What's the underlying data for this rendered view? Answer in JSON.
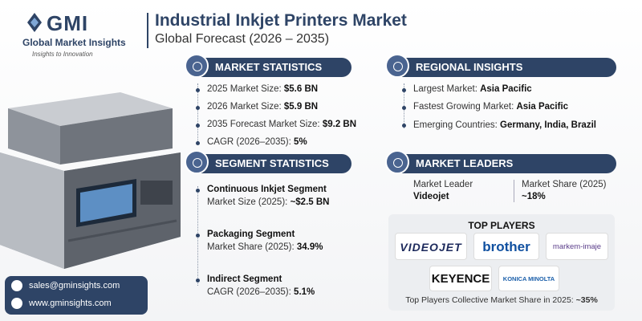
{
  "header": {
    "logo": {
      "brand": "GMI",
      "name": "Global Market Insights",
      "tagline": "Insights to Innovation"
    },
    "title": "Industrial Inkjet Printers Market",
    "subtitle": "Global Forecast (2026 – 2035)"
  },
  "market_statistics": {
    "heading": "MARKET STATISTICS",
    "items": [
      {
        "label": "2025 Market Size:",
        "value": "$5.6 BN"
      },
      {
        "label": "2026 Market Size:",
        "value": "$5.9 BN"
      },
      {
        "label": "2035 Forecast Market Size:",
        "value": "$9.2 BN"
      },
      {
        "label": "CAGR (2026–2035):",
        "value": "5%"
      }
    ]
  },
  "regional_insights": {
    "heading": "REGIONAL INSIGHTS",
    "items": [
      {
        "label": "Largest Market:",
        "value": "Asia Pacific"
      },
      {
        "label": "Fastest Growing Market:",
        "value": "Asia Pacific"
      },
      {
        "label": "Emerging Countries:",
        "value": "Germany, India, Brazil"
      }
    ]
  },
  "segment_statistics": {
    "heading": "SEGMENT STATISTICS",
    "items": [
      {
        "title": "Continuous Inkjet Segment",
        "label": "Market Size (2025):",
        "value": "~$2.5 BN"
      },
      {
        "title": "Packaging Segment",
        "label": "Market Share (2025):",
        "value": "34.9%"
      },
      {
        "title": "Indirect Segment",
        "label": "CAGR (2026–2035):",
        "value": "5.1%"
      }
    ]
  },
  "market_leaders": {
    "heading": "MARKET LEADERS",
    "leader_label": "Market Leader",
    "leader": "Videojet",
    "share_label": "Market Share (2025)",
    "share": "~18%"
  },
  "top_players": {
    "heading": "TOP PLAYERS",
    "logos": [
      "VIDEOJET",
      "brother",
      "markem-imaje",
      "KEYENCE",
      "KONICA MINOLTA"
    ],
    "footer_label": "Top Players Collective Market Share in 2025:",
    "footer_value": "~35%"
  },
  "contact": {
    "email": "sales@gminsights.com",
    "website": "www.gminsights.com"
  }
}
